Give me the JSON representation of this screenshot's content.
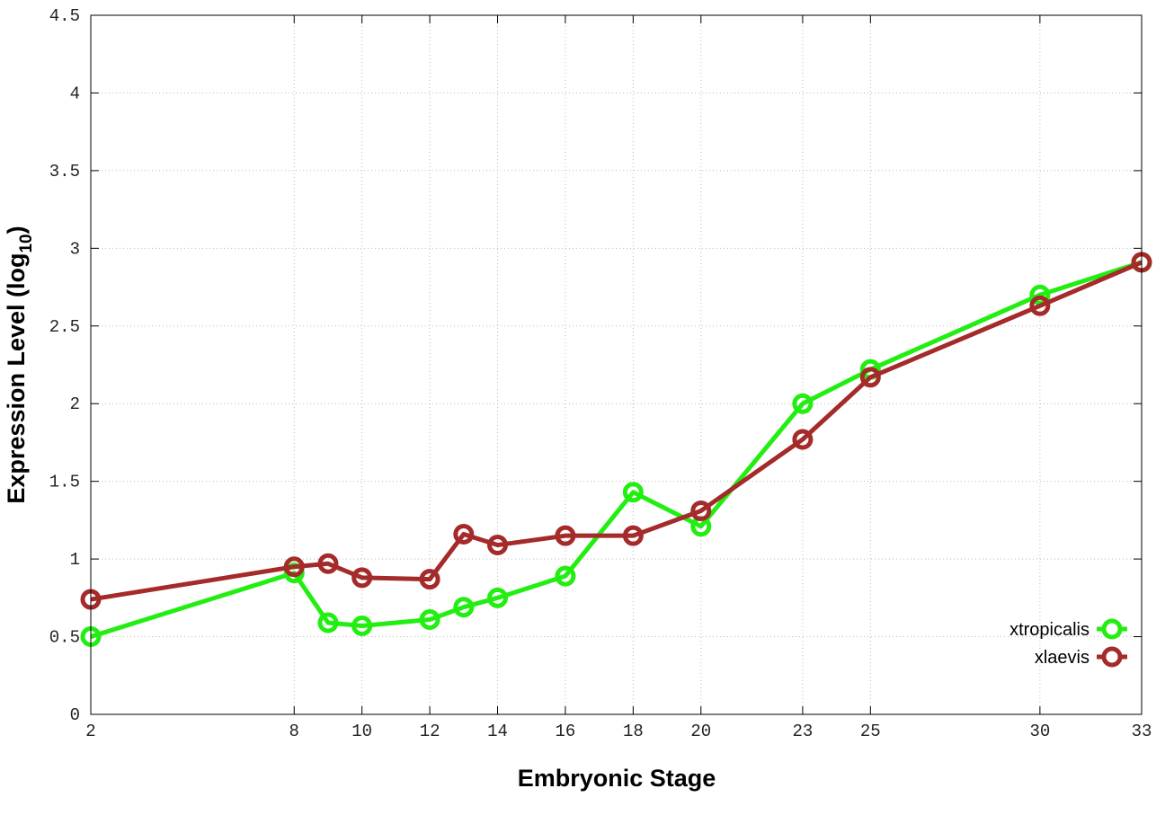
{
  "chart_data": {
    "type": "line",
    "title": "",
    "xlabel": "Embryonic Stage",
    "ylabel": "Expression Level (log",
    "ylabel_sub": "10",
    "ylabel_end": ")",
    "xlim": [
      2,
      33
    ],
    "ylim": [
      0,
      4.5
    ],
    "xticks": [
      2,
      8,
      10,
      12,
      14,
      16,
      18,
      20,
      23,
      25,
      30,
      33
    ],
    "yticks": [
      "0",
      "0.5",
      "1",
      "1.5",
      "2",
      "2.5",
      "3",
      "3.5",
      "4",
      "4.5"
    ],
    "grid": true,
    "legend_position": "bottom-right",
    "x": [
      2,
      8,
      9,
      10,
      12,
      13,
      14,
      16,
      18,
      20,
      23,
      25,
      30,
      33
    ],
    "series": [
      {
        "name": "xtropicalis",
        "color": "#22ee11",
        "values": [
          0.5,
          0.91,
          0.59,
          0.57,
          0.61,
          0.69,
          0.75,
          0.89,
          1.43,
          1.21,
          2.0,
          2.22,
          2.7,
          2.91
        ]
      },
      {
        "name": "xlaevis",
        "color": "#a52a2a",
        "values": [
          0.74,
          0.95,
          0.97,
          0.88,
          0.87,
          1.16,
          1.09,
          1.15,
          1.15,
          1.31,
          1.77,
          2.17,
          2.63,
          2.91
        ]
      }
    ]
  }
}
